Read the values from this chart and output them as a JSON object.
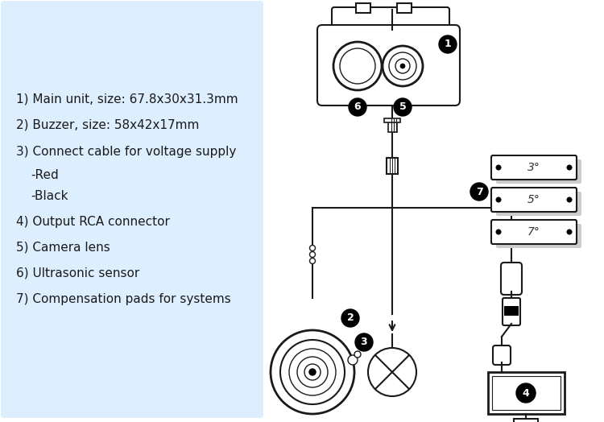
{
  "bg_color": "#ffffff",
  "panel_color": "#ddeeff",
  "lc": "#1a1a1a",
  "lw": 1.5,
  "texts": [
    [
      20,
      115,
      "1) Main unit, size: 67.8x30x31.3mm"
    ],
    [
      20,
      148,
      "2) Buzzer, size: 58x42x17mm"
    ],
    [
      20,
      181,
      "3) Connect cable for voltage supply"
    ],
    [
      38,
      210,
      "-Red"
    ],
    [
      38,
      236,
      "-Black"
    ],
    [
      20,
      268,
      "4) Output RCA connector"
    ],
    [
      20,
      300,
      "5) Camera lens"
    ],
    [
      20,
      332,
      "6) Ultrasonic sensor"
    ],
    [
      20,
      364,
      "7) Compensation pads for systems"
    ]
  ],
  "font_size": 11.0
}
